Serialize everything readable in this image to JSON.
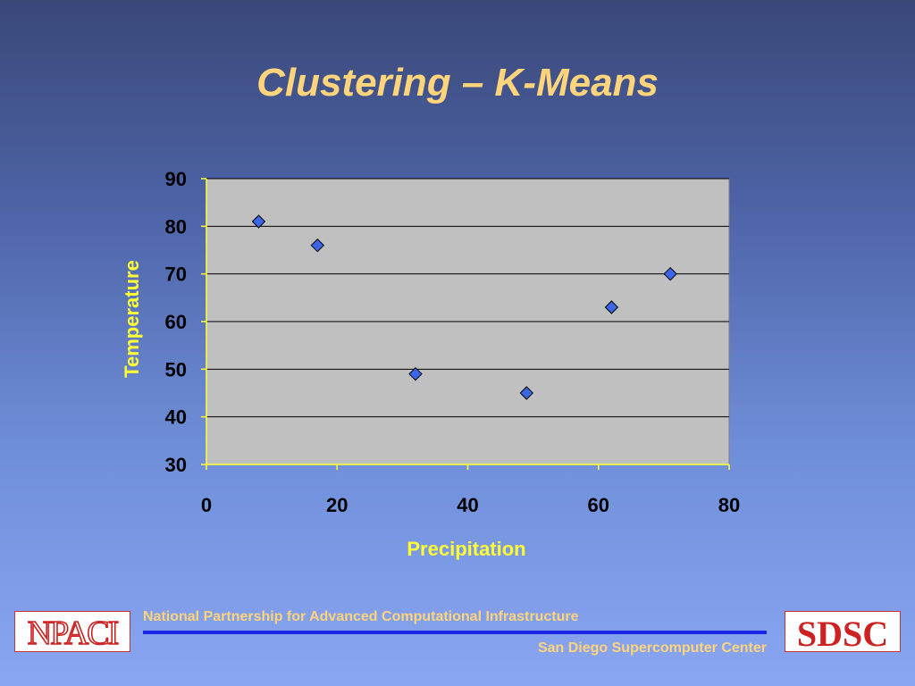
{
  "title": "Clustering – K-Means",
  "colors": {
    "title": "#ffd47a",
    "axis_label": "#ffff33",
    "plot_bg": "#c0c0c0",
    "marker": "#3b66e6",
    "rule": "#1a25e8",
    "logo_red": "#cc2222"
  },
  "chart_data": {
    "type": "scatter",
    "xlabel": "Precipitation",
    "ylabel": "Temperature",
    "xlim": [
      0,
      80
    ],
    "ylim": [
      30,
      90
    ],
    "xticks": [
      0,
      20,
      40,
      60,
      80
    ],
    "yticks": [
      30,
      40,
      50,
      60,
      70,
      80,
      90
    ],
    "grid": "horizontal",
    "marker": "diamond",
    "points": [
      {
        "x": 8,
        "y": 81
      },
      {
        "x": 17,
        "y": 76
      },
      {
        "x": 32,
        "y": 49
      },
      {
        "x": 49,
        "y": 45
      },
      {
        "x": 62,
        "y": 63
      },
      {
        "x": 71,
        "y": 70
      }
    ]
  },
  "footer": {
    "line1": "National Partnership for Advanced Computational Infrastructure",
    "line2": "San Diego Supercomputer Center",
    "logo_left": "NPACI",
    "logo_right": "SDSC"
  }
}
